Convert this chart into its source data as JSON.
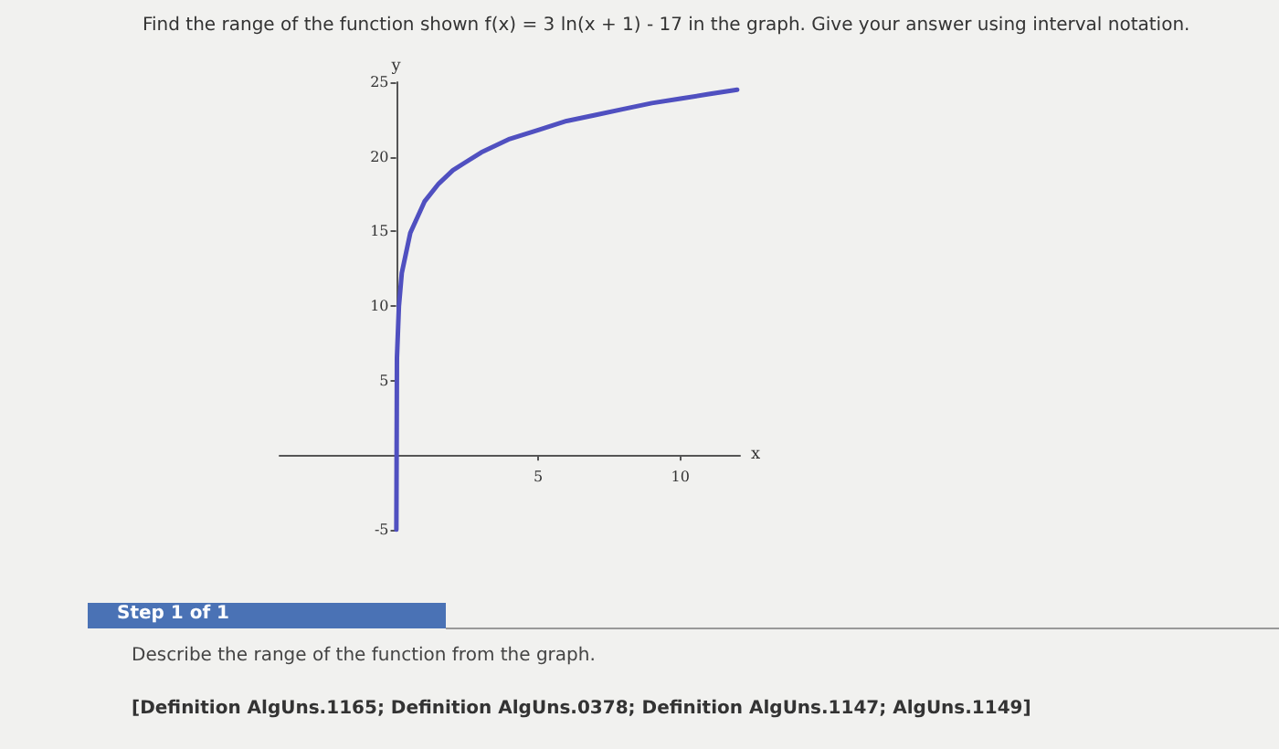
{
  "chart_data": {
    "type": "line",
    "title": "Find the range of the function shown f(x) = 3 ln(x + 1) - 17 in the graph. Give your answer using interval notation.",
    "xlabel": "x",
    "ylabel": "y",
    "x": [
      0.01,
      0.03,
      0.1,
      0.2,
      0.5,
      1,
      1.5,
      2,
      3,
      4,
      5,
      6,
      7,
      8,
      9,
      10,
      11,
      12
    ],
    "series": [
      {
        "color": "#5050c0",
        "values": [
          -5,
          6.5,
          10,
          12.2,
          14.9,
          17,
          18.2,
          19.1,
          20.3,
          21.2,
          21.8,
          22.4,
          22.8,
          23.2,
          23.6,
          23.9,
          24.2,
          24.5
        ]
      }
    ],
    "xlim": [
      -4.1,
      12.1
    ],
    "ylim": [
      -5,
      25
    ],
    "xticks": [
      5,
      10
    ],
    "yticks": [
      -5,
      5,
      10,
      15,
      20,
      25
    ],
    "grid": false,
    "marker": "none",
    "line_style": "solid",
    "annotations": [
      "Step 1 of 1",
      "Describe the range of the function from the graph.",
      "[Definition AlgUns.1165; Definition AlgUns.0378; Definition AlgUns.1147; AlgUns.1149]"
    ]
  }
}
